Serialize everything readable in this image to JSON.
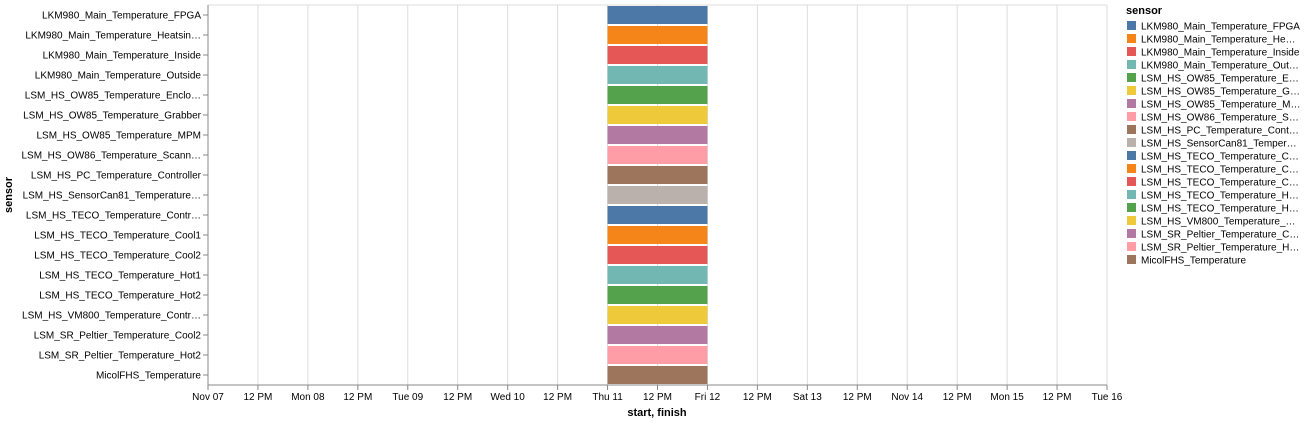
{
  "chart_data": {
    "type": "bar",
    "subtype": "gantt",
    "xlabel": "start, finish",
    "ylabel": "sensor",
    "x_ticks": [
      "Nov 07",
      "12 PM",
      "Mon 08",
      "12 PM",
      "Tue 09",
      "12 PM",
      "Wed 10",
      "12 PM",
      "Thu 11",
      "12 PM",
      "Fri 12",
      "12 PM",
      "Sat 13",
      "12 PM",
      "Nov 14",
      "12 PM",
      "Mon 15",
      "12 PM",
      "Tue 16"
    ],
    "xlim": [
      "2021-11-07 00:00",
      "2021-11-16 00:00"
    ],
    "grid": true,
    "legend": {
      "title": "sensor",
      "position": "right",
      "labels": [
        "LKM980_Main_Temperature_FPGA",
        "LKM980_Main_Temperature_He…",
        "LKM980_Main_Temperature_Inside",
        "LKM980_Main_Temperature_Out…",
        "LSM_HS_OW85_Temperature_E…",
        "LSM_HS_OW85_Temperature_G…",
        "LSM_HS_OW85_Temperature_M…",
        "LSM_HS_OW86_Temperature_S…",
        "LSM_HS_PC_Temperature_Cont…",
        "LSM_HS_SensorCan81_Temper…",
        "LSM_HS_TECO_Temperature_C…",
        "LSM_HS_TECO_Temperature_C…",
        "LSM_HS_TECO_Temperature_C…",
        "LSM_HS_TECO_Temperature_H…",
        "LSM_HS_TECO_Temperature_H…",
        "LSM_HS_VM800_Temperature_…",
        "LSM_SR_Peltier_Temperature_C…",
        "LSM_SR_Peltier_Temperature_H…",
        "MicolFHS_Temperature"
      ]
    },
    "series": [
      {
        "sensor": "LKM980_Main_Temperature_FPGA",
        "start": "2021-11-11 00:00",
        "finish": "2021-11-12 00:00",
        "color": "#4c78a8"
      },
      {
        "sensor": "LKM980_Main_Temperature_Heatsin…",
        "start": "2021-11-11 00:00",
        "finish": "2021-11-12 00:00",
        "color": "#f58518"
      },
      {
        "sensor": "LKM980_Main_Temperature_Inside",
        "start": "2021-11-11 00:00",
        "finish": "2021-11-12 00:00",
        "color": "#e45756"
      },
      {
        "sensor": "LKM980_Main_Temperature_Outside",
        "start": "2021-11-11 00:00",
        "finish": "2021-11-12 00:00",
        "color": "#72b7b2"
      },
      {
        "sensor": "LSM_HS_OW85_Temperature_Enclo…",
        "start": "2021-11-11 00:00",
        "finish": "2021-11-12 00:00",
        "color": "#54a24b"
      },
      {
        "sensor": "LSM_HS_OW85_Temperature_Grabber",
        "start": "2021-11-11 00:00",
        "finish": "2021-11-12 00:00",
        "color": "#eeca3b"
      },
      {
        "sensor": "LSM_HS_OW85_Temperature_MPM",
        "start": "2021-11-11 00:00",
        "finish": "2021-11-12 00:00",
        "color": "#b279a2"
      },
      {
        "sensor": "LSM_HS_OW86_Temperature_Scann…",
        "start": "2021-11-11 00:00",
        "finish": "2021-11-12 00:00",
        "color": "#ff9da6"
      },
      {
        "sensor": "LSM_HS_PC_Temperature_Controller",
        "start": "2021-11-11 00:00",
        "finish": "2021-11-12 00:00",
        "color": "#9d755d"
      },
      {
        "sensor": "LSM_HS_SensorCan81_Temperature…",
        "start": "2021-11-11 00:00",
        "finish": "2021-11-12 00:00",
        "color": "#bab0ac"
      },
      {
        "sensor": "LSM_HS_TECO_Temperature_Contr…",
        "start": "2021-11-11 00:00",
        "finish": "2021-11-12 00:00",
        "color": "#4c78a8"
      },
      {
        "sensor": "LSM_HS_TECO_Temperature_Cool1",
        "start": "2021-11-11 00:00",
        "finish": "2021-11-12 00:00",
        "color": "#f58518"
      },
      {
        "sensor": "LSM_HS_TECO_Temperature_Cool2",
        "start": "2021-11-11 00:00",
        "finish": "2021-11-12 00:00",
        "color": "#e45756"
      },
      {
        "sensor": "LSM_HS_TECO_Temperature_Hot1",
        "start": "2021-11-11 00:00",
        "finish": "2021-11-12 00:00",
        "color": "#72b7b2"
      },
      {
        "sensor": "LSM_HS_TECO_Temperature_Hot2",
        "start": "2021-11-11 00:00",
        "finish": "2021-11-12 00:00",
        "color": "#54a24b"
      },
      {
        "sensor": "LSM_HS_VM800_Temperature_Contr…",
        "start": "2021-11-11 00:00",
        "finish": "2021-11-12 00:00",
        "color": "#eeca3b"
      },
      {
        "sensor": "LSM_SR_Peltier_Temperature_Cool2",
        "start": "2021-11-11 00:00",
        "finish": "2021-11-12 00:00",
        "color": "#b279a2"
      },
      {
        "sensor": "LSM_SR_Peltier_Temperature_Hot2",
        "start": "2021-11-11 00:00",
        "finish": "2021-11-12 00:00",
        "color": "#ff9da6"
      },
      {
        "sensor": "MicolFHS_Temperature",
        "start": "2021-11-11 00:00",
        "finish": "2021-11-12 00:00",
        "color": "#9d755d"
      }
    ]
  }
}
